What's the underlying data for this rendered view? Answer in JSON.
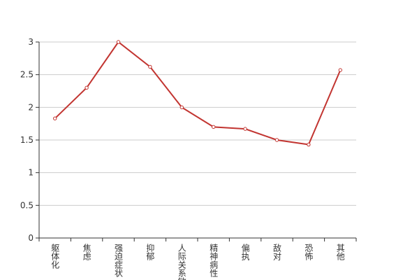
{
  "chart_data": {
    "type": "line",
    "categories": [
      "躯体化",
      "焦虑",
      "强迫症状",
      "抑郁",
      "人际关系敏感",
      "精神病性",
      "偏执",
      "敌对",
      "恐怖",
      "其他"
    ],
    "series": [
      {
        "color": "#c23531",
        "values": [
          1.83,
          2.3,
          3.0,
          2.62,
          2.0,
          1.7,
          1.67,
          1.5,
          1.43,
          2.57
        ]
      }
    ],
    "ylim": [
      0,
      3
    ],
    "yticks": [
      0,
      0.5,
      1,
      1.5,
      2,
      2.5,
      3
    ],
    "grid": true
  }
}
